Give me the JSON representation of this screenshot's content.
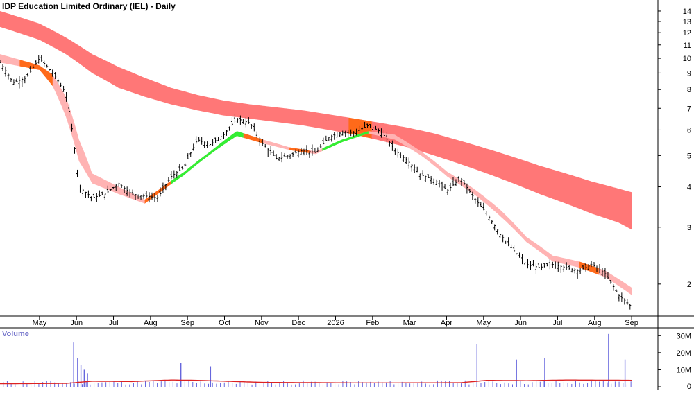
{
  "chart_data": [
    {
      "type": "line",
      "title": "IDP Education Limited Ordinary (IEL) - Daily",
      "y_scale": "log",
      "ylim": [
        1.6,
        15
      ],
      "y_ticks": [
        "2",
        "3",
        "4",
        "5",
        "6",
        "7",
        "8",
        "9",
        "10",
        "11",
        "12",
        "13",
        "14"
      ],
      "x_tick_labels": [
        "May",
        "Jun",
        "Jul",
        "Aug",
        "Sep",
        "Oct",
        "Nov",
        "Dec",
        "2026",
        "Feb",
        "Mar",
        "Apr",
        "May",
        "Jun",
        "Jul",
        "Aug",
        "Sep"
      ],
      "grid": false,
      "colors": {
        "price": "#000000",
        "slow_band": "#ff7777",
        "fast_band": "#ffb3b3",
        "fast_above": "#33ee33",
        "fast_below": "#ff6a1a",
        "slow_highlight": "#ff6a1a"
      },
      "price_series": {
        "name": "",
        "x": [
          0,
          2,
          4,
          6,
          8,
          10,
          12,
          14,
          16,
          18,
          20,
          22,
          24,
          26,
          28,
          30,
          32,
          34,
          36,
          38,
          40,
          42,
          44,
          46,
          48,
          50,
          52,
          54,
          56,
          58,
          60,
          62,
          64,
          66,
          68,
          70,
          72,
          74,
          76,
          78,
          80,
          82,
          84,
          86,
          88,
          90,
          92,
          94,
          96
        ],
        "values": [
          9.7,
          8.4,
          8.7,
          10.0,
          9.0,
          7.8,
          4.0,
          3.7,
          3.8,
          4.1,
          3.8,
          3.75,
          3.7,
          4.3,
          4.6,
          5.6,
          5.4,
          5.8,
          6.5,
          6.3,
          5.4,
          4.9,
          5.0,
          5.2,
          5.1,
          5.7,
          5.9,
          5.9,
          6.2,
          5.9,
          5.2,
          4.8,
          4.35,
          4.2,
          3.9,
          4.25,
          3.7,
          3.3,
          2.85,
          2.55,
          2.3,
          2.25,
          2.3,
          2.25,
          2.2,
          2.3,
          2.15,
          1.85,
          1.7
        ]
      },
      "fast_band": {
        "name": "",
        "x": [
          0,
          6,
          8,
          10,
          12,
          14,
          18,
          22,
          24,
          28,
          32,
          36,
          40,
          44,
          48,
          52,
          56,
          60,
          64,
          68,
          72,
          76,
          80,
          84,
          88,
          92,
          96
        ],
        "upper": [
          10.3,
          9.5,
          8.9,
          7.6,
          5.6,
          4.4,
          4.0,
          3.65,
          3.9,
          4.45,
          5.15,
          5.95,
          5.6,
          5.3,
          5.15,
          5.6,
          5.95,
          5.8,
          5.15,
          4.45,
          3.95,
          3.4,
          2.8,
          2.45,
          2.35,
          2.2,
          1.95
        ],
        "lower": [
          9.7,
          9.2,
          8.2,
          6.6,
          4.8,
          4.1,
          3.8,
          3.55,
          3.8,
          4.35,
          5.05,
          5.75,
          5.45,
          5.2,
          5.05,
          5.5,
          5.85,
          5.6,
          5.0,
          4.3,
          3.8,
          3.25,
          2.7,
          2.35,
          2.25,
          2.1,
          1.85
        ]
      },
      "fast_band_highlights": [
        {
          "color": "below",
          "x_range": [
            3,
            8
          ]
        },
        {
          "color": "below",
          "x_range": [
            22,
            26
          ]
        },
        {
          "color": "above",
          "x_range": [
            26,
            37
          ]
        },
        {
          "color": "below",
          "x_range": [
            37,
            40
          ]
        },
        {
          "color": "below",
          "x_range": [
            44,
            47
          ]
        },
        {
          "color": "above",
          "x_range": [
            49,
            56
          ]
        },
        {
          "color": "below",
          "x_range": [
            88,
            91
          ]
        }
      ],
      "slow_band": {
        "name": "",
        "x": [
          0,
          6,
          10,
          14,
          18,
          22,
          26,
          30,
          34,
          38,
          42,
          46,
          50,
          54,
          58,
          62,
          66,
          70,
          74,
          78,
          82,
          86,
          90,
          94,
          96
        ],
        "upper": [
          14.0,
          12.8,
          11.6,
          10.3,
          9.4,
          8.7,
          8.1,
          7.7,
          7.4,
          7.2,
          7.05,
          6.9,
          6.7,
          6.5,
          6.3,
          6.1,
          5.85,
          5.55,
          5.25,
          4.95,
          4.65,
          4.4,
          4.15,
          3.95,
          3.85
        ],
        "lower": [
          12.5,
          11.4,
          10.3,
          9.0,
          8.1,
          7.6,
          7.2,
          6.9,
          6.65,
          6.5,
          6.35,
          6.2,
          6.0,
          5.8,
          5.55,
          5.3,
          5.0,
          4.7,
          4.4,
          4.1,
          3.8,
          3.55,
          3.3,
          3.1,
          2.95
        ]
      },
      "slow_band_highlights": [
        {
          "color": "highlight",
          "x_range": [
            53,
            56.5
          ]
        }
      ]
    },
    {
      "type": "bar",
      "title": "Volume",
      "ylim": [
        0,
        35
      ],
      "y_ticks": [
        "0",
        "10M",
        "20M",
        "30M"
      ],
      "colors": {
        "bars": "#6666dd",
        "average": "#dd2222"
      },
      "spikes": [
        {
          "x": 11.2,
          "value": 26
        },
        {
          "x": 11.8,
          "value": 17
        },
        {
          "x": 12.3,
          "value": 13
        },
        {
          "x": 12.8,
          "value": 10
        },
        {
          "x": 13.3,
          "value": 8
        },
        {
          "x": 27.5,
          "value": 14
        },
        {
          "x": 32.0,
          "value": 12
        },
        {
          "x": 72.5,
          "value": 25
        },
        {
          "x": 78.5,
          "value": 16
        },
        {
          "x": 82.8,
          "value": 17
        },
        {
          "x": 92.5,
          "value": 31
        },
        {
          "x": 95.0,
          "value": 16
        }
      ],
      "average": {
        "x": [
          0,
          10,
          14,
          20,
          26,
          30,
          40,
          55,
          70,
          74,
          80,
          86,
          92,
          96
        ],
        "values": [
          1.8,
          2.0,
          3.3,
          3.1,
          4.0,
          3.8,
          2.6,
          2.3,
          2.4,
          3.8,
          3.6,
          4.0,
          3.9,
          3.8
        ]
      }
    }
  ]
}
